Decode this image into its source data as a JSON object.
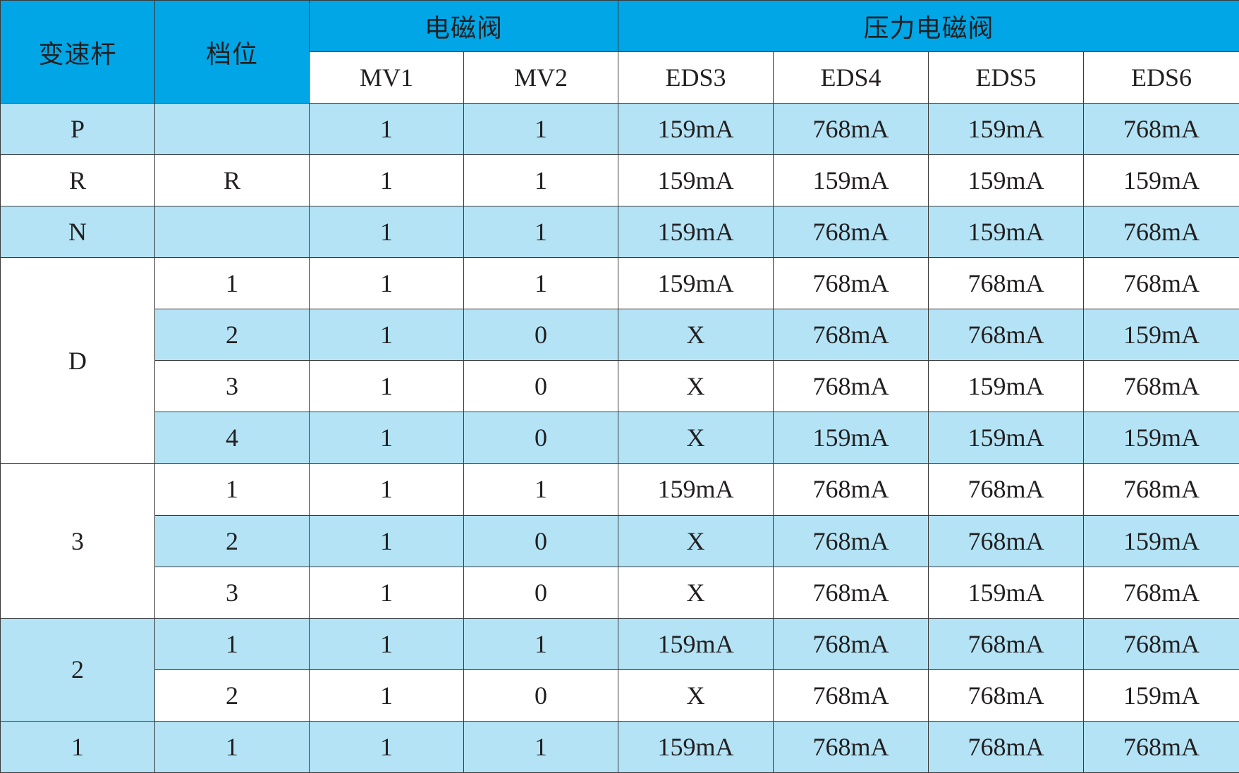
{
  "header": {
    "lever": "变速杆",
    "gear": "档位",
    "solenoid_group": "电磁阀",
    "pressure_group": "压力电磁阀",
    "columns": [
      "MV1",
      "MV2",
      "EDS3",
      "EDS4",
      "EDS5",
      "EDS6"
    ]
  },
  "rows": [
    {
      "lever": "P",
      "gear": "",
      "values": [
        "1",
        "1",
        "159mA",
        "768mA",
        "159mA",
        "768mA"
      ]
    },
    {
      "lever": "R",
      "gear": "R",
      "values": [
        "1",
        "1",
        "159mA",
        "159mA",
        "159mA",
        "159mA"
      ]
    },
    {
      "lever": "N",
      "gear": "",
      "values": [
        "1",
        "1",
        "159mA",
        "768mA",
        "159mA",
        "768mA"
      ]
    },
    {
      "lever": "D",
      "gear": "1",
      "values": [
        "1",
        "1",
        "159mA",
        "768mA",
        "768mA",
        "768mA"
      ]
    },
    {
      "lever": "",
      "gear": "2",
      "values": [
        "1",
        "0",
        "X",
        "768mA",
        "768mA",
        "159mA"
      ]
    },
    {
      "lever": "",
      "gear": "3",
      "values": [
        "1",
        "0",
        "X",
        "768mA",
        "159mA",
        "768mA"
      ]
    },
    {
      "lever": "",
      "gear": "4",
      "values": [
        "1",
        "0",
        "X",
        "159mA",
        "159mA",
        "159mA"
      ]
    },
    {
      "lever": "3",
      "gear": "1",
      "values": [
        "1",
        "1",
        "159mA",
        "768mA",
        "768mA",
        "768mA"
      ]
    },
    {
      "lever": "",
      "gear": "2",
      "values": [
        "1",
        "0",
        "X",
        "768mA",
        "768mA",
        "159mA"
      ]
    },
    {
      "lever": "",
      "gear": "3",
      "values": [
        "1",
        "0",
        "X",
        "768mA",
        "159mA",
        "768mA"
      ]
    },
    {
      "lever": "2",
      "gear": "1",
      "values": [
        "1",
        "1",
        "159mA",
        "768mA",
        "768mA",
        "768mA"
      ]
    },
    {
      "lever": "",
      "gear": "2",
      "values": [
        "1",
        "0",
        "X",
        "768mA",
        "768mA",
        "159mA"
      ]
    },
    {
      "lever": "1",
      "gear": "1",
      "values": [
        "1",
        "1",
        "159mA",
        "768mA",
        "768mA",
        "768mA"
      ]
    }
  ],
  "colors": {
    "header_blue": "#00a6e6",
    "row_shade": "#b3e3f5",
    "row_plain": "#ffffff",
    "grid_line": "#3a3a3a"
  }
}
